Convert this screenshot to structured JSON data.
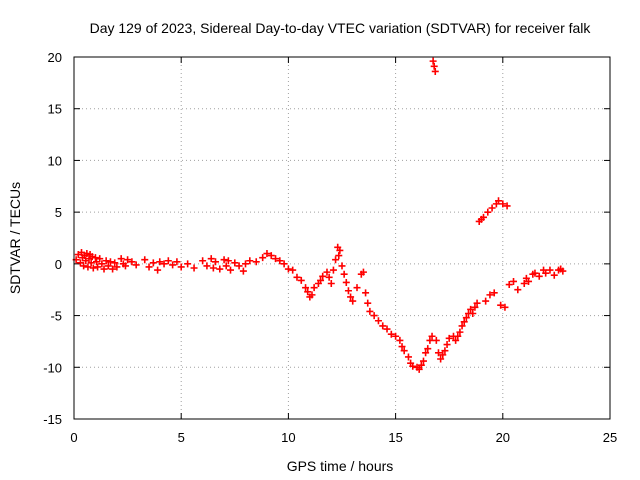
{
  "chart_data": {
    "type": "scatter",
    "title": "Day 129 of 2023, Sidereal Day-to-day VTEC variation (SDTVAR) for receiver falk",
    "xlabel": "GPS time / hours",
    "ylabel": "SDTVAR / TECUs",
    "xlim": [
      0,
      25
    ],
    "ylim": [
      -15,
      20
    ],
    "x_ticks": [
      "0",
      "5",
      "10",
      "15",
      "20",
      "25"
    ],
    "y_ticks": [
      "-15",
      "-10",
      "-5",
      "0",
      "5",
      "10",
      "15",
      "20"
    ],
    "grid": true,
    "marker": "plus",
    "color": "#ff0000",
    "series": [
      {
        "name": "SDTVAR",
        "points": [
          [
            0.1,
            0.4
          ],
          [
            0.2,
            0.9
          ],
          [
            0.3,
            0.1
          ],
          [
            0.35,
            1.1
          ],
          [
            0.4,
            0.6
          ],
          [
            0.45,
            -0.2
          ],
          [
            0.5,
            0.8
          ],
          [
            0.55,
            0.3
          ],
          [
            0.6,
            1.0
          ],
          [
            0.65,
            -0.3
          ],
          [
            0.7,
            0.5
          ],
          [
            0.75,
            0.9
          ],
          [
            0.8,
            0.1
          ],
          [
            0.85,
            0.7
          ],
          [
            0.9,
            -0.4
          ],
          [
            1.0,
            0.6
          ],
          [
            1.05,
            0.2
          ],
          [
            1.1,
            -0.3
          ],
          [
            1.2,
            0.5
          ],
          [
            1.3,
            0.0
          ],
          [
            1.4,
            -0.5
          ],
          [
            1.5,
            0.3
          ],
          [
            1.6,
            -0.2
          ],
          [
            1.7,
            0.2
          ],
          [
            1.8,
            -0.5
          ],
          [
            1.9,
            0.1
          ],
          [
            2.0,
            -0.3
          ],
          [
            2.2,
            0.5
          ],
          [
            2.3,
            0.0
          ],
          [
            2.4,
            -0.2
          ],
          [
            2.5,
            0.4
          ],
          [
            2.7,
            0.2
          ],
          [
            2.9,
            -0.1
          ],
          [
            3.3,
            0.4
          ],
          [
            3.5,
            -0.3
          ],
          [
            3.7,
            0.1
          ],
          [
            3.9,
            -0.6
          ],
          [
            4.0,
            0.2
          ],
          [
            4.2,
            0.0
          ],
          [
            4.4,
            0.3
          ],
          [
            4.6,
            -0.1
          ],
          [
            4.8,
            0.2
          ],
          [
            5.0,
            -0.3
          ],
          [
            5.3,
            0.0
          ],
          [
            5.6,
            -0.4
          ],
          [
            6.0,
            0.3
          ],
          [
            6.2,
            -0.2
          ],
          [
            6.4,
            0.5
          ],
          [
            6.5,
            -0.4
          ],
          [
            6.6,
            0.2
          ],
          [
            6.8,
            -0.5
          ],
          [
            7.0,
            0.4
          ],
          [
            7.1,
            -0.2
          ],
          [
            7.2,
            0.3
          ],
          [
            7.3,
            -0.6
          ],
          [
            7.5,
            0.1
          ],
          [
            7.7,
            -0.2
          ],
          [
            7.9,
            -0.7
          ],
          [
            8.0,
            0.0
          ],
          [
            8.2,
            0.3
          ],
          [
            8.5,
            0.2
          ],
          [
            8.8,
            0.6
          ],
          [
            9.0,
            1.0
          ],
          [
            9.2,
            0.8
          ],
          [
            9.4,
            0.5
          ],
          [
            9.6,
            0.3
          ],
          [
            9.8,
            0.0
          ],
          [
            10.0,
            -0.5
          ],
          [
            10.2,
            -0.6
          ],
          [
            10.4,
            -1.3
          ],
          [
            10.6,
            -1.6
          ],
          [
            10.8,
            -2.3
          ],
          [
            10.9,
            -2.7
          ],
          [
            11.0,
            -3.2
          ],
          [
            11.1,
            -3.0
          ],
          [
            11.2,
            -2.3
          ],
          [
            11.4,
            -1.9
          ],
          [
            11.5,
            -1.6
          ],
          [
            11.6,
            -1.2
          ],
          [
            11.8,
            -0.8
          ],
          [
            11.9,
            -1.3
          ],
          [
            12.0,
            -1.9
          ],
          [
            12.1,
            -0.6
          ],
          [
            12.2,
            0.4
          ],
          [
            12.3,
            1.6
          ],
          [
            12.35,
            0.8
          ],
          [
            12.4,
            1.3
          ],
          [
            12.5,
            -0.2
          ],
          [
            12.6,
            -1.0
          ],
          [
            12.7,
            -1.8
          ],
          [
            12.8,
            -2.6
          ],
          [
            12.9,
            -3.2
          ],
          [
            13.0,
            -3.6
          ],
          [
            13.2,
            -2.3
          ],
          [
            13.4,
            -1.0
          ],
          [
            13.5,
            -0.8
          ],
          [
            13.6,
            -2.8
          ],
          [
            13.7,
            -3.8
          ],
          [
            13.8,
            -4.6
          ],
          [
            14.0,
            -5.0
          ],
          [
            14.2,
            -5.5
          ],
          [
            14.4,
            -6.0
          ],
          [
            14.6,
            -6.3
          ],
          [
            14.8,
            -6.8
          ],
          [
            15.0,
            -7.0
          ],
          [
            15.2,
            -7.4
          ],
          [
            15.3,
            -8.0
          ],
          [
            15.4,
            -8.4
          ],
          [
            15.6,
            -9.0
          ],
          [
            15.7,
            -9.6
          ],
          [
            15.8,
            -9.9
          ],
          [
            16.0,
            -10.0
          ],
          [
            16.1,
            -10.2
          ],
          [
            16.2,
            -9.8
          ],
          [
            16.3,
            -9.4
          ],
          [
            16.4,
            -8.6
          ],
          [
            16.5,
            -8.2
          ],
          [
            16.6,
            -7.4
          ],
          [
            16.7,
            -7.0
          ],
          [
            16.75,
            19.6
          ],
          [
            16.8,
            19.1
          ],
          [
            16.85,
            18.6
          ],
          [
            16.9,
            -7.4
          ],
          [
            17.0,
            -8.6
          ],
          [
            17.1,
            -9.2
          ],
          [
            17.2,
            -8.8
          ],
          [
            17.3,
            -8.4
          ],
          [
            17.4,
            -7.8
          ],
          [
            17.5,
            -7.2
          ],
          [
            17.7,
            -7.0
          ],
          [
            17.8,
            -7.4
          ],
          [
            17.9,
            -7.0
          ],
          [
            18.0,
            -6.6
          ],
          [
            18.1,
            -6.0
          ],
          [
            18.2,
            -5.6
          ],
          [
            18.3,
            -5.2
          ],
          [
            18.4,
            -4.8
          ],
          [
            18.5,
            -4.4
          ],
          [
            18.6,
            -4.8
          ],
          [
            18.7,
            -4.2
          ],
          [
            18.8,
            -3.8
          ],
          [
            18.9,
            4.1
          ],
          [
            19.0,
            4.3
          ],
          [
            19.1,
            4.5
          ],
          [
            19.2,
            -3.6
          ],
          [
            19.3,
            5.0
          ],
          [
            19.4,
            -3.0
          ],
          [
            19.5,
            5.4
          ],
          [
            19.6,
            -2.8
          ],
          [
            19.7,
            5.8
          ],
          [
            19.8,
            6.1
          ],
          [
            19.9,
            -4.0
          ],
          [
            20.0,
            5.8
          ],
          [
            20.1,
            -4.2
          ],
          [
            20.2,
            5.6
          ],
          [
            20.3,
            -2.0
          ],
          [
            20.5,
            -1.7
          ],
          [
            20.7,
            -2.5
          ],
          [
            21.0,
            -1.9
          ],
          [
            21.1,
            -1.4
          ],
          [
            21.2,
            -1.7
          ],
          [
            21.4,
            -1.0
          ],
          [
            21.5,
            -0.9
          ],
          [
            21.7,
            -1.2
          ],
          [
            21.9,
            -0.6
          ],
          [
            22.0,
            -0.9
          ],
          [
            22.2,
            -0.6
          ],
          [
            22.4,
            -1.1
          ],
          [
            22.6,
            -0.6
          ],
          [
            22.7,
            -0.5
          ],
          [
            22.8,
            -0.7
          ]
        ]
      }
    ]
  }
}
